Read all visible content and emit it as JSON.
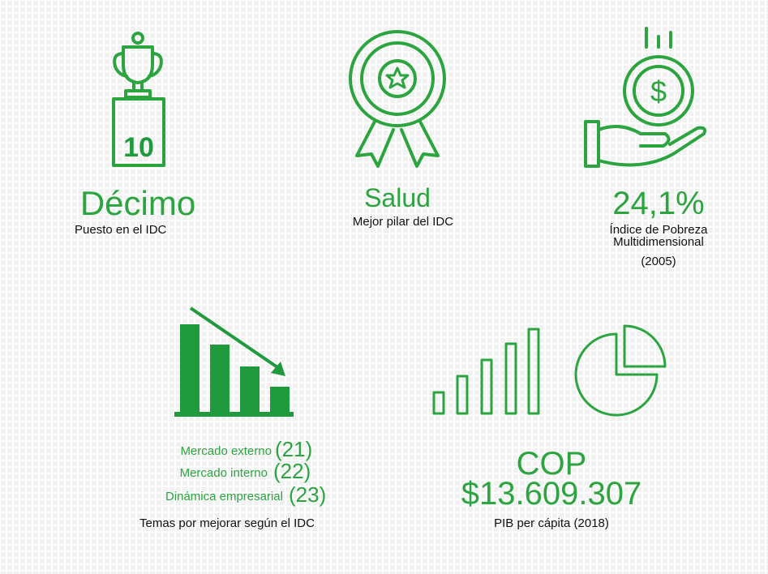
{
  "items": [
    {
      "badge": "10",
      "value": "Décimo",
      "label": "Puesto en el IDC"
    },
    {
      "value": "Salud",
      "label": "Mejor pilar del IDC"
    },
    {
      "symbol": "$",
      "value": "24,1%",
      "label_lines": [
        "Índice de Pobreza",
        "Multidimensional",
        "(2005)"
      ]
    }
  ],
  "topics": {
    "rows": [
      {
        "name": "Mercado externo",
        "rank": "(21)"
      },
      {
        "name": "Mercado interno",
        "rank": "(22)"
      },
      {
        "name": "Dinámica empresarial",
        "rank": "(23)"
      }
    ],
    "caption": "Temas por mejorar según el IDC"
  },
  "pib": {
    "value_lines": [
      "COP",
      "$13.609.307"
    ],
    "label": "PIB per cápita (2018)"
  }
}
